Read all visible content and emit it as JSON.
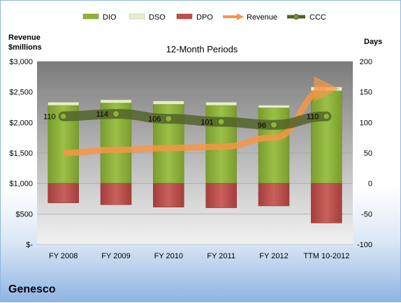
{
  "company": "Genesco",
  "chart_data": {
    "type": "bar",
    "title": "12-Month Periods",
    "left_axis_label_line1": "Revenue",
    "left_axis_label_line2": "$millions",
    "right_axis_label": "Days",
    "categories": [
      "FY 2008",
      "FY 2009",
      "FY 2010",
      "FY 2011",
      "FY 2012",
      "TTM 10-2012"
    ],
    "left_ticks": [
      "$-",
      "$500",
      "$1,000",
      "$1,500",
      "$2,000",
      "$2,500",
      "$3,000"
    ],
    "left_tick_values": [
      0,
      500,
      1000,
      1500,
      2000,
      2500,
      3000
    ],
    "right_ticks": [
      "-100",
      "-50",
      "0",
      "50",
      "100",
      "150",
      "200"
    ],
    "right_tick_values": [
      -100,
      -50,
      0,
      50,
      100,
      150,
      200
    ],
    "ylim_left": [
      0,
      3000
    ],
    "ylim_right": [
      -100,
      200
    ],
    "legend_position": "top",
    "series": [
      {
        "name": "DIO",
        "axis": "right",
        "kind": "stacked-bar",
        "color": "#8db33a",
        "values": [
          128,
          132,
          130,
          128,
          124,
          152
        ]
      },
      {
        "name": "DSO",
        "axis": "right",
        "kind": "stacked-bar",
        "color": "#e6f0c8",
        "values": [
          5,
          5,
          5,
          5,
          4,
          6
        ]
      },
      {
        "name": "DPO",
        "axis": "right",
        "kind": "bar-negative",
        "color": "#c0504d",
        "values": [
          -32,
          -35,
          -39,
          -40,
          -37,
          -65
        ]
      },
      {
        "name": "Revenue",
        "axis": "left",
        "kind": "arrow-line",
        "color": "#f79646",
        "values": [
          1500,
          1550,
          1580,
          1600,
          1750,
          2550
        ]
      },
      {
        "name": "CCC",
        "axis": "right",
        "kind": "line",
        "color": "#4f6228",
        "values": [
          110,
          114,
          106,
          101,
          96,
          110
        ]
      }
    ],
    "ccc_labels": [
      "110",
      "114",
      "106",
      "101",
      "96",
      "110"
    ]
  }
}
